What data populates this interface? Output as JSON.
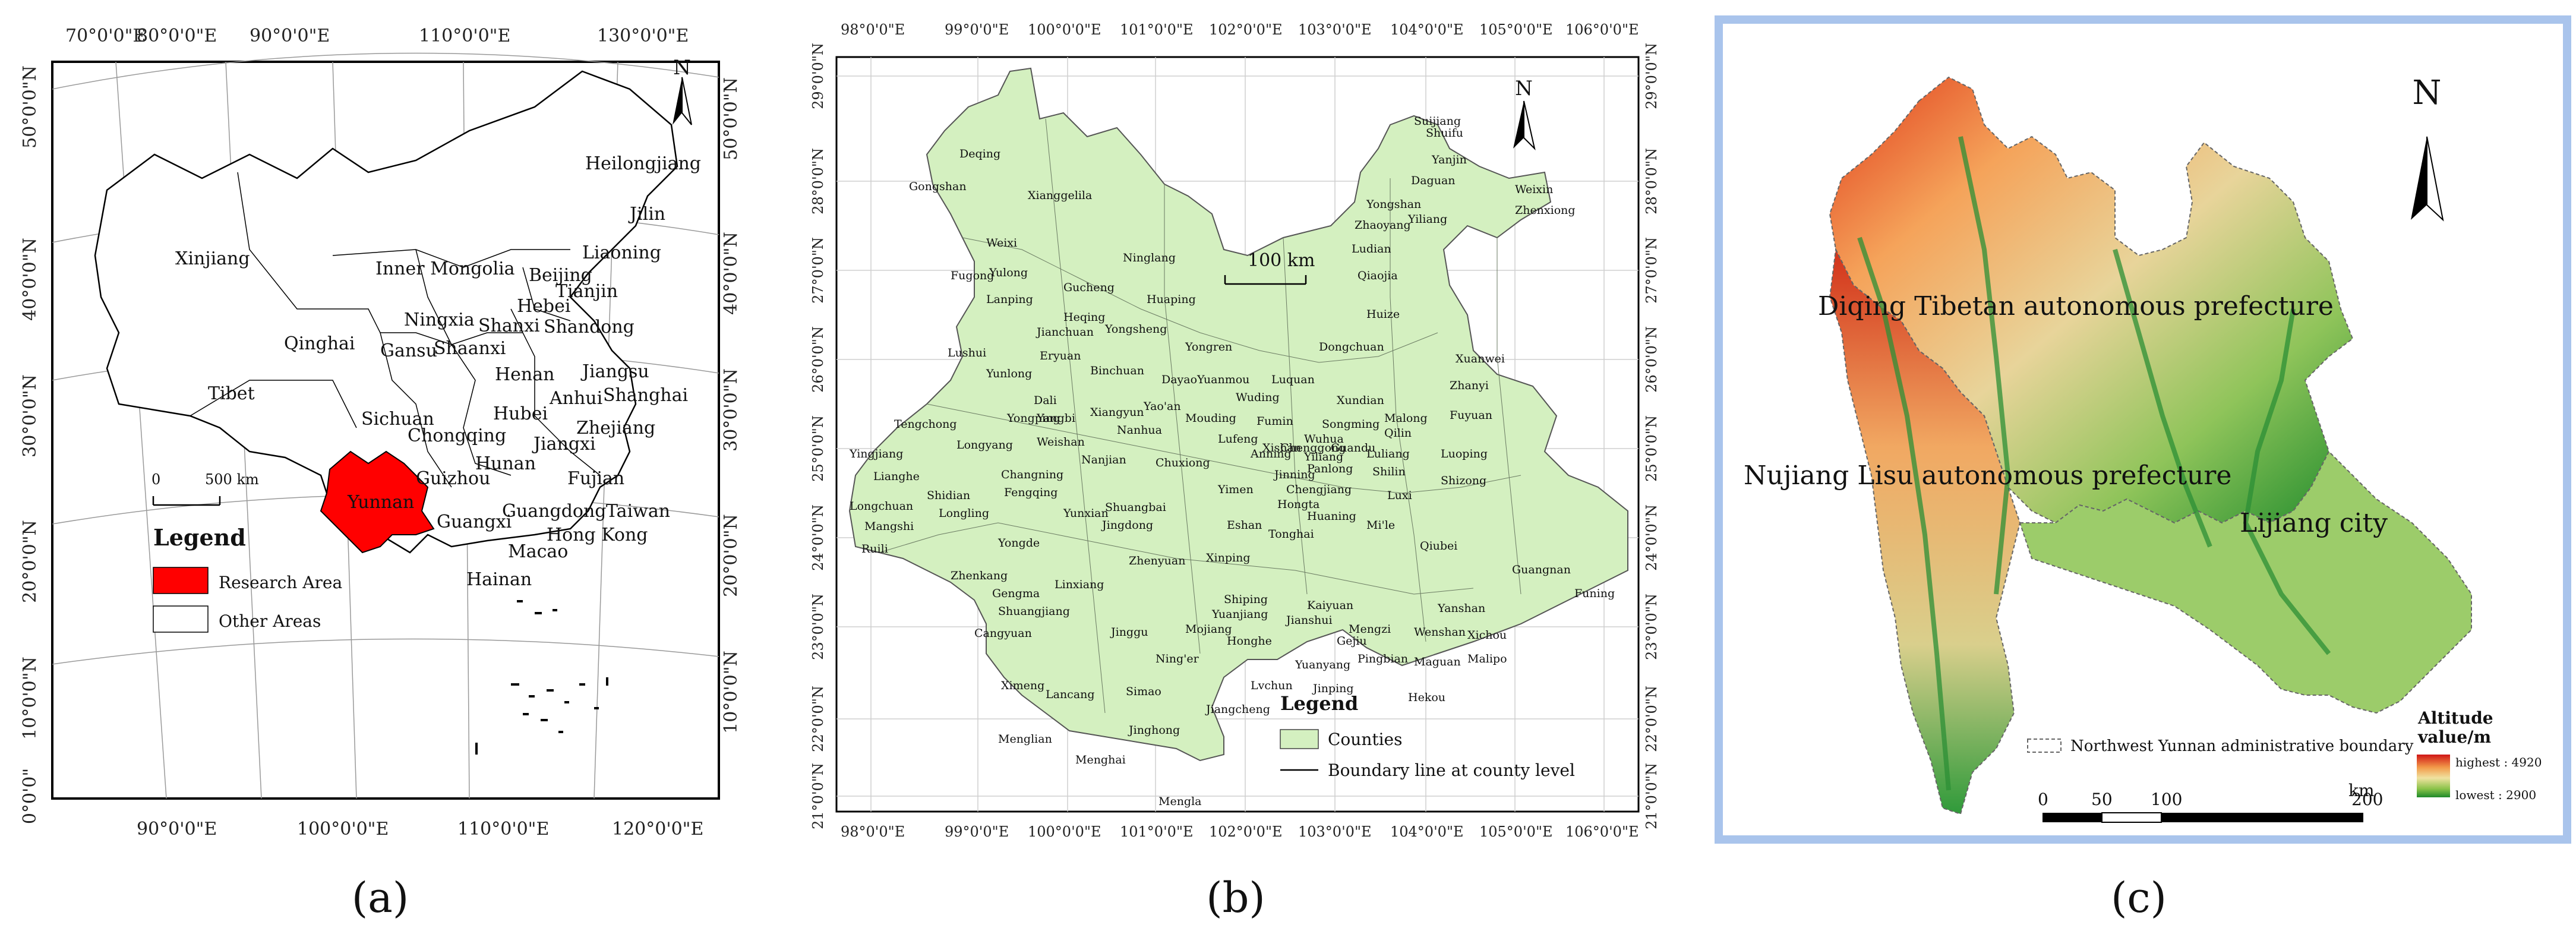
{
  "panel_a": {
    "caption": "(a)",
    "top_lon_labels": [
      "70°0'0\"E",
      "80°0'0\"E",
      "90°0'0\"E",
      "110°0'0\"E",
      "130°0'0\"E"
    ],
    "bottom_lon_labels": [
      "90°0'0\"E",
      "100°0'0\"E",
      "110°0'0\"E",
      "120°0'0\"E"
    ],
    "left_lat_labels": [
      "50°0'0\"N",
      "40°0'0\"N",
      "30°0'0\"N",
      "20°0'0\"N",
      "10°0'0\"N",
      "0°0'0\""
    ],
    "right_lat_labels": [
      "50°0'0\"N",
      "40°0'0\"N",
      "30°0'0\"N",
      "20°0'0\"N",
      "10°0'0\"N"
    ],
    "north": "N",
    "scale_labels": [
      "0",
      "500 km"
    ],
    "legend_title": "Legend",
    "legend_items": [
      "Research Area",
      "Other Areas"
    ],
    "regions": [
      {
        "name": "Heilongjiang"
      },
      {
        "name": "Jilin"
      },
      {
        "name": "Liaoning"
      },
      {
        "name": "Xinjiang"
      },
      {
        "name": "Inner Mongolia"
      },
      {
        "name": "Beijing"
      },
      {
        "name": "Hebei"
      },
      {
        "name": "Tianjin"
      },
      {
        "name": "Ningxia"
      },
      {
        "name": "Shanxi"
      },
      {
        "name": "Shandong"
      },
      {
        "name": "Qinghai"
      },
      {
        "name": "Gansu"
      },
      {
        "name": "Shaanxi"
      },
      {
        "name": "Jiangsu"
      },
      {
        "name": "Henan"
      },
      {
        "name": "Anhui"
      },
      {
        "name": "Shanghai"
      },
      {
        "name": "Tibet"
      },
      {
        "name": "Sichuan"
      },
      {
        "name": "Hubei"
      },
      {
        "name": "Chongqing"
      },
      {
        "name": "Zhejiang"
      },
      {
        "name": "Jiangxi"
      },
      {
        "name": "Hunan"
      },
      {
        "name": "Guizhou"
      },
      {
        "name": "Fujian"
      },
      {
        "name": "Yunnan"
      },
      {
        "name": "Guangxi"
      },
      {
        "name": "Guangdong"
      },
      {
        "name": "Taiwan"
      },
      {
        "name": "Hong Kong"
      },
      {
        "name": "Macao"
      },
      {
        "name": "Hainan"
      }
    ],
    "colors": {
      "research": "#ff0000",
      "other": "#ffffff"
    }
  },
  "panel_b": {
    "caption": "(b)",
    "lon_labels": [
      "98°0'0\"E",
      "99°0'0\"E",
      "100°0'0\"E",
      "101°0'0\"E",
      "102°0'0\"E",
      "103°0'0\"E",
      "104°0'0\"E",
      "105°0'0\"E",
      "106°0'0\"E"
    ],
    "lat_labels": [
      "29°0'0\"N",
      "28°0'0\"N",
      "27°0'0\"N",
      "26°0'0\"N",
      "25°0'0\"N",
      "24°0'0\"N",
      "23°0'0\"N",
      "22°0'0\"N",
      "21°0'0\"N"
    ],
    "north": "N",
    "scale_label": "100 km",
    "legend_title": "Legend",
    "legend_items": [
      "Counties",
      "Boundary line at county level"
    ],
    "fill_color": "#d4f0c0",
    "counties": [
      "Deqing",
      "Gongshan",
      "Xianggelila",
      "Weixi",
      "Fugong",
      "Yulong",
      "Ninglang",
      "Gucheng",
      "Lanping",
      "Huaping",
      "Heqing",
      "Yongsheng",
      "Jianchuan",
      "Lushui",
      "Eryuan",
      "Binchuan",
      "Yongren",
      "Yunlong",
      "Dali",
      "Dayao",
      "Yuanmou",
      "Wuding",
      "Luquan",
      "Dongchuan",
      "Xuanwei",
      "Zhanyi",
      "Xundian",
      "Fuyuan",
      "Malong",
      "Qilin",
      "Yangbi",
      "Xiangyun",
      "Yao'an",
      "Mouding",
      "Fumin",
      "Songming",
      "Luliang",
      "Luoping",
      "Yongping",
      "Nanhua",
      "Lufeng",
      "Anning",
      "Chenggong",
      "Yiliang",
      "Shilin",
      "Shizong",
      "Tengchong",
      "Longyang",
      "Weishan",
      "Nanjian",
      "Chuxiong",
      "Jinning",
      "Chengjiang",
      "Luxi",
      "Yingjiang",
      "Lianghe",
      "Changning",
      "Fengqing",
      "Shuangbai",
      "Yimen",
      "Hongta",
      "Huaning",
      "Mi'le",
      "Longchuan",
      "Shidian",
      "Longling",
      "Yunxian",
      "Jingdong",
      "Eshan",
      "Tonghai",
      "Mangshi",
      "Ruili",
      "Yongde",
      "Zhenyuan",
      "Xinping",
      "Qiubei",
      "Guangnan",
      "Zhenkang",
      "Gengma",
      "Linxiang",
      "Shuangjiang",
      "Shiping",
      "Kaiyuan",
      "Yanshan",
      "Funing",
      "Cangyuan",
      "Jinggu",
      "Mojiang",
      "Yuanjiang",
      "Jianshui",
      "Honghe",
      "Gejiu",
      "Mengzi",
      "Wenshan",
      "Xichou",
      "Ning'er",
      "Yuanyang",
      "Pingbian",
      "Maguan",
      "Malipo",
      "Lvchun",
      "Ximeng",
      "Lancang",
      "Simao",
      "Jinping",
      "Hekou",
      "Jiangcheng",
      "Jinghong",
      "Menglian",
      "Menghai",
      "Mengla",
      "Suijiang",
      "Shuifu",
      "Yanjin",
      "Daguan",
      "Yongshan",
      "Weixin",
      "Yiliang",
      "Zhenxiong",
      "Zhaoyang",
      "Ludian",
      "Qiaojia",
      "Huize",
      "Xishan",
      "Wuhua",
      "Panlong",
      "Guandu"
    ]
  },
  "panel_c": {
    "caption": "(c)",
    "north": "N",
    "region_labels": [
      "Diqing Tibetan autonomous prefecture",
      "Nujiang Lisu autonomous prefecture",
      "Lijiang city"
    ],
    "boundary_legend": "Northwest Yunnan administrative boundary",
    "altitude_title": "Altitude value/m",
    "altitude_high": "highest : 4920",
    "altitude_low": "lowest : 2900",
    "scale_unit": "km",
    "scale_labels": [
      "0",
      "50",
      "100",
      "200"
    ],
    "frame_color": "#a9c4ec"
  }
}
